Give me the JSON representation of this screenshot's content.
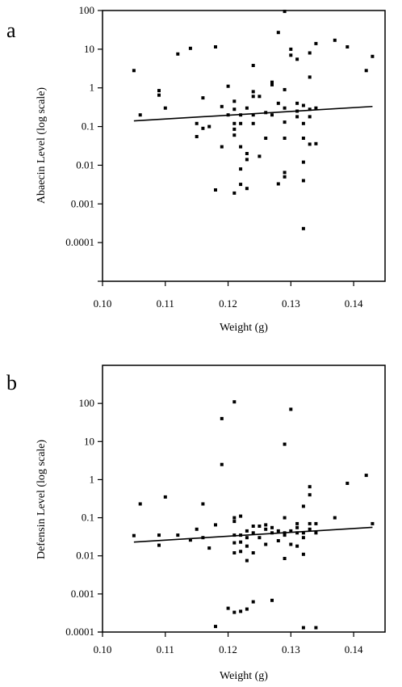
{
  "chart_data": [
    {
      "type": "scatter",
      "panel_label": "a",
      "xlabel": "Weight (g)",
      "ylabel": "Abaecin Level (log scale)",
      "xlim": [
        0.1,
        0.145
      ],
      "ylim": [
        1e-05,
        100
      ],
      "yscale": "log",
      "xticks": [
        "0.10",
        "0.11",
        "0.12",
        "0.13",
        "0.14"
      ],
      "yticks": [
        "100",
        "10",
        "1",
        "0.1",
        "0.01",
        "0.001",
        "0.0001"
      ],
      "grid": false,
      "trendline": [
        [
          0.105,
          0.14
        ],
        [
          0.143,
          0.33
        ]
      ],
      "points": [
        [
          0.105,
          2.8
        ],
        [
          0.106,
          0.2
        ],
        [
          0.109,
          0.85
        ],
        [
          0.109,
          0.65
        ],
        [
          0.11,
          0.3
        ],
        [
          0.112,
          7.5
        ],
        [
          0.114,
          10.5
        ],
        [
          0.115,
          0.12
        ],
        [
          0.115,
          0.055
        ],
        [
          0.116,
          0.55
        ],
        [
          0.116,
          0.09
        ],
        [
          0.117,
          0.1
        ],
        [
          0.118,
          11.5
        ],
        [
          0.118,
          0.0023
        ],
        [
          0.119,
          0.33
        ],
        [
          0.119,
          0.03
        ],
        [
          0.12,
          1.1
        ],
        [
          0.12,
          0.2
        ],
        [
          0.121,
          0.45
        ],
        [
          0.121,
          0.28
        ],
        [
          0.121,
          0.12
        ],
        [
          0.121,
          0.085
        ],
        [
          0.121,
          0.06
        ],
        [
          0.121,
          0.0019
        ],
        [
          0.122,
          0.2
        ],
        [
          0.122,
          0.12
        ],
        [
          0.122,
          0.03
        ],
        [
          0.122,
          0.008
        ],
        [
          0.122,
          0.0032
        ],
        [
          0.123,
          0.3
        ],
        [
          0.123,
          0.02
        ],
        [
          0.123,
          0.014
        ],
        [
          0.123,
          0.0025
        ],
        [
          0.124,
          3.8
        ],
        [
          0.124,
          0.8
        ],
        [
          0.124,
          0.6
        ],
        [
          0.124,
          0.2
        ],
        [
          0.124,
          0.12
        ],
        [
          0.125,
          0.6
        ],
        [
          0.125,
          0.017
        ],
        [
          0.126,
          0.23
        ],
        [
          0.126,
          0.05
        ],
        [
          0.127,
          1.4
        ],
        [
          0.127,
          1.2
        ],
        [
          0.127,
          0.2
        ],
        [
          0.128,
          27
        ],
        [
          0.128,
          0.0033
        ],
        [
          0.128,
          0.4
        ],
        [
          0.129,
          95
        ],
        [
          0.129,
          0.9
        ],
        [
          0.129,
          0.3
        ],
        [
          0.129,
          0.13
        ],
        [
          0.129,
          0.05
        ],
        [
          0.129,
          0.0065
        ],
        [
          0.129,
          0.005
        ],
        [
          0.13,
          10
        ],
        [
          0.13,
          7
        ],
        [
          0.131,
          5.5
        ],
        [
          0.131,
          0.4
        ],
        [
          0.131,
          0.25
        ],
        [
          0.131,
          0.18
        ],
        [
          0.132,
          0.35
        ],
        [
          0.132,
          0.12
        ],
        [
          0.132,
          0.05
        ],
        [
          0.132,
          0.012
        ],
        [
          0.132,
          0.004
        ],
        [
          0.132,
          0.00023
        ],
        [
          0.133,
          8
        ],
        [
          0.133,
          1.9
        ],
        [
          0.133,
          0.28
        ],
        [
          0.133,
          0.18
        ],
        [
          0.133,
          0.035
        ],
        [
          0.134,
          14
        ],
        [
          0.134,
          0.3
        ],
        [
          0.134,
          0.036
        ],
        [
          0.137,
          17
        ],
        [
          0.139,
          11.5
        ],
        [
          0.142,
          2.8
        ],
        [
          0.143,
          6.5
        ]
      ]
    },
    {
      "type": "scatter",
      "panel_label": "b",
      "xlabel": "Weight (g)",
      "ylabel": "Defensin Level (log scale)",
      "xlim": [
        0.1,
        0.145
      ],
      "ylim": [
        0.0001,
        1000
      ],
      "yscale": "log",
      "xticks": [
        "0.10",
        "0.11",
        "0.12",
        "0.13",
        "0.14"
      ],
      "yticks": [
        "100",
        "10",
        "1",
        "0.1",
        "0.01",
        "0.001",
        "0.0001"
      ],
      "grid": false,
      "trendline": [
        [
          0.105,
          0.023
        ],
        [
          0.143,
          0.056
        ]
      ],
      "points": [
        [
          0.105,
          0.034
        ],
        [
          0.106,
          0.23
        ],
        [
          0.109,
          0.035
        ],
        [
          0.109,
          0.019
        ],
        [
          0.11,
          0.35
        ],
        [
          0.112,
          0.035
        ],
        [
          0.114,
          0.026
        ],
        [
          0.115,
          0.05
        ],
        [
          0.116,
          0.23
        ],
        [
          0.116,
          0.03
        ],
        [
          0.117,
          0.016
        ],
        [
          0.118,
          0.065
        ],
        [
          0.118,
          0.00014
        ],
        [
          0.119,
          40
        ],
        [
          0.119,
          2.5
        ],
        [
          0.12,
          0.00042
        ],
        [
          0.121,
          110
        ],
        [
          0.121,
          0.1
        ],
        [
          0.121,
          0.08
        ],
        [
          0.121,
          0.035
        ],
        [
          0.121,
          0.022
        ],
        [
          0.121,
          0.012
        ],
        [
          0.121,
          0.00033
        ],
        [
          0.122,
          0.11
        ],
        [
          0.122,
          0.035
        ],
        [
          0.122,
          0.023
        ],
        [
          0.122,
          0.013
        ],
        [
          0.122,
          0.00035
        ],
        [
          0.123,
          0.045
        ],
        [
          0.123,
          0.03
        ],
        [
          0.123,
          0.018
        ],
        [
          0.123,
          0.0075
        ],
        [
          0.123,
          0.0004
        ],
        [
          0.124,
          0.06
        ],
        [
          0.124,
          0.04
        ],
        [
          0.124,
          0.012
        ],
        [
          0.124,
          0.00062
        ],
        [
          0.125,
          0.06
        ],
        [
          0.125,
          0.03
        ],
        [
          0.126,
          0.065
        ],
        [
          0.126,
          0.05
        ],
        [
          0.126,
          0.02
        ],
        [
          0.127,
          0.055
        ],
        [
          0.127,
          0.04
        ],
        [
          0.127,
          0.00068
        ],
        [
          0.128,
          0.045
        ],
        [
          0.128,
          0.025
        ],
        [
          0.129,
          8.5
        ],
        [
          0.129,
          0.1
        ],
        [
          0.129,
          0.04
        ],
        [
          0.129,
          0.035
        ],
        [
          0.129,
          0.0085
        ],
        [
          0.13,
          70
        ],
        [
          0.13,
          0.045
        ],
        [
          0.13,
          0.02
        ],
        [
          0.131,
          0.07
        ],
        [
          0.131,
          0.055
        ],
        [
          0.131,
          0.04
        ],
        [
          0.131,
          0.018
        ],
        [
          0.132,
          0.2
        ],
        [
          0.132,
          0.04
        ],
        [
          0.132,
          0.03
        ],
        [
          0.132,
          0.011
        ],
        [
          0.132,
          0.00013
        ],
        [
          0.133,
          0.65
        ],
        [
          0.133,
          0.4
        ],
        [
          0.133,
          0.07
        ],
        [
          0.133,
          0.05
        ],
        [
          0.134,
          0.07
        ],
        [
          0.134,
          0.04
        ],
        [
          0.134,
          0.00013
        ],
        [
          0.137,
          0.1
        ],
        [
          0.139,
          0.8
        ],
        [
          0.142,
          1.3
        ],
        [
          0.143,
          0.07
        ]
      ]
    }
  ]
}
